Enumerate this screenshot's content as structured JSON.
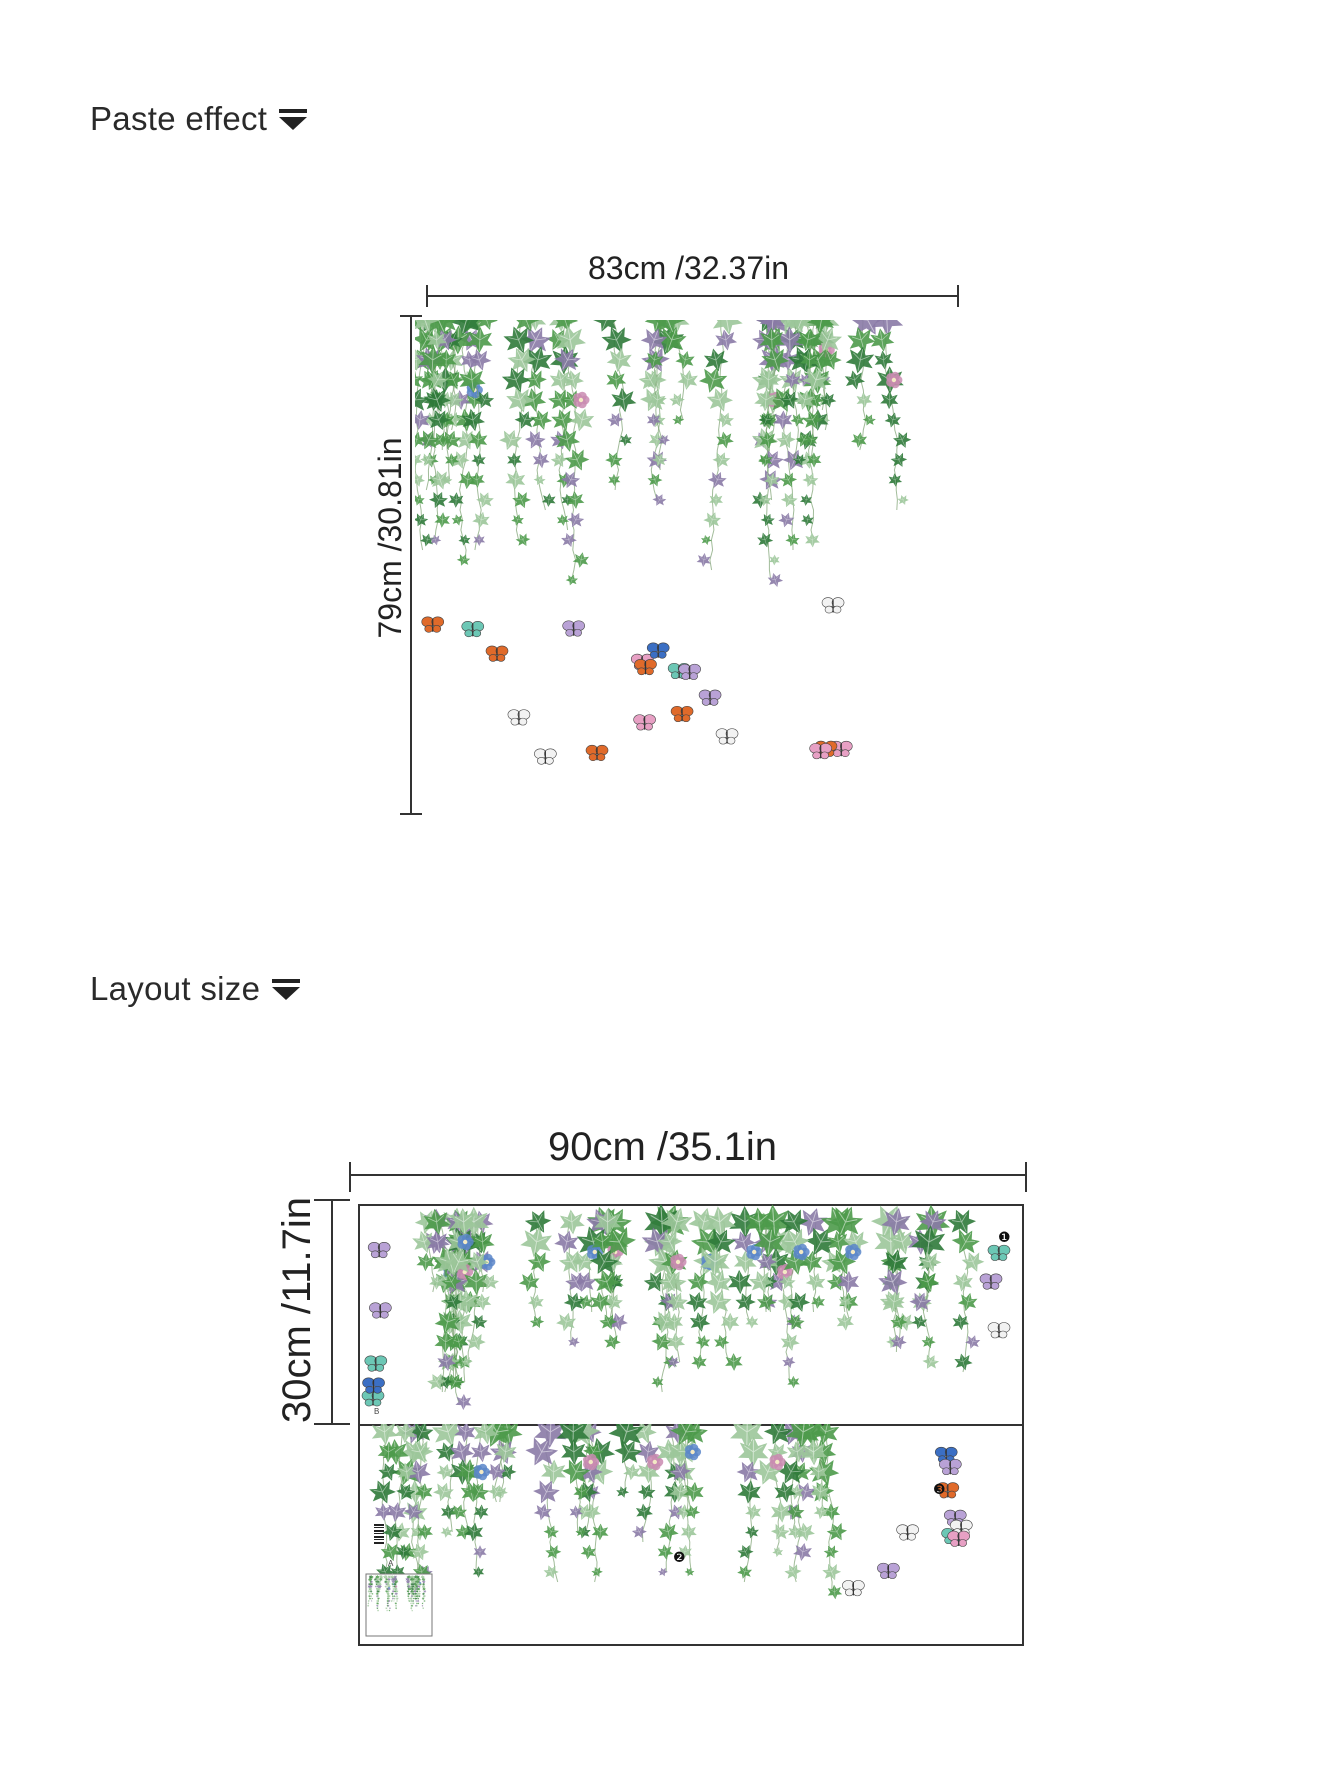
{
  "sections": {
    "paste_effect": {
      "title": "Paste effect",
      "icon": "caret-down-icon"
    },
    "layout_size": {
      "title": "Layout size",
      "icon": "caret-down-icon"
    }
  },
  "effect_dims": {
    "width_label": "83cm /32.37in",
    "height_label": "79cm /30.81in"
  },
  "layout_dims": {
    "width_label": "90cm /35.1in",
    "height_label": "30cm /11.7in"
  },
  "sheet_markers": [
    "❶",
    "❷",
    "❸"
  ],
  "sheet_letters": {
    "top": "B",
    "bottom": "A"
  },
  "colors": {
    "leaf_dark": "#2f7a3a",
    "leaf_mid": "#4c9a4a",
    "leaf_light": "#9cc79a",
    "leaf_purple": "#8a7aa6",
    "flower_blue": "#5b86c9",
    "flower_pink": "#c98bb0",
    "butterfly_orange": "#e06a2a",
    "butterfly_blue": "#3b6fc4",
    "line": "#333333"
  }
}
